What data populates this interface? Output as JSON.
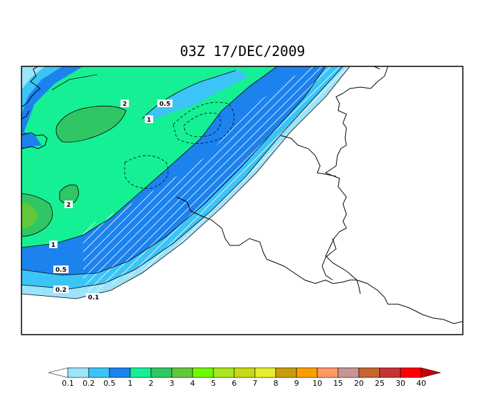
{
  "title": "03Z 17/DEC/2009",
  "contour_labels": {
    "upper_2": "2",
    "upper_05": "0.5",
    "upper_1": "1",
    "left_2": "2",
    "left_1": "1",
    "low_05": "0.5",
    "low_02": "0.2",
    "low_01": "0.1"
  },
  "colorbar": {
    "levels": [
      "0.1",
      "0.2",
      "0.5",
      "1",
      "2",
      "3",
      "4",
      "5",
      "6",
      "7",
      "8",
      "9",
      "10",
      "15",
      "20",
      "25",
      "30",
      "40"
    ],
    "colors": [
      "#9ce4fa",
      "#3cc4f6",
      "#1c82ee",
      "#16f095",
      "#30c664",
      "#62c83a",
      "#6efa00",
      "#a8e61e",
      "#c8d814",
      "#e2f030",
      "#c89c0a",
      "#fc9e00",
      "#ff9966",
      "#c89494",
      "#c86432",
      "#c83232",
      "#ff0000",
      "#c8000a"
    ],
    "min_arrow_color": "#ffffff",
    "max_arrow_color": "#c8000a"
  }
}
